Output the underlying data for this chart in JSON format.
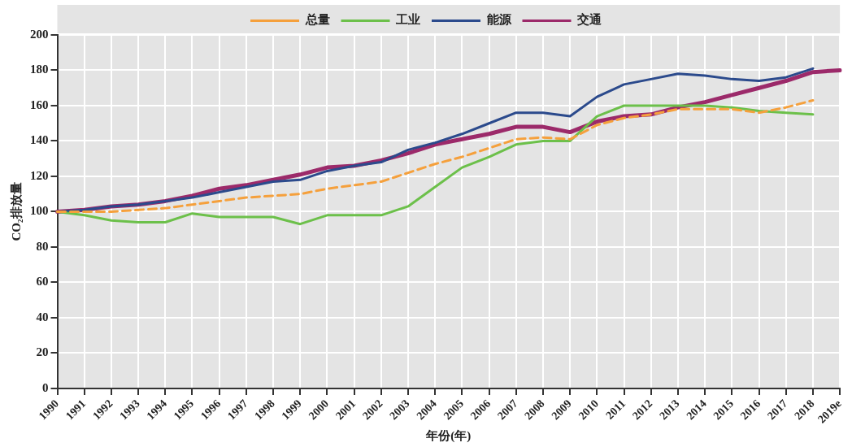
{
  "chart_data": {
    "type": "line",
    "xlabel": "年份(年)",
    "ylabel": "CO₂排放量",
    "categories": [
      "1990",
      "1991",
      "1992",
      "1993",
      "1994",
      "1995",
      "1996",
      "1997",
      "1998",
      "1999",
      "2000",
      "2001",
      "2002",
      "2003",
      "2004",
      "2005",
      "2006",
      "2007",
      "2008",
      "2009",
      "2010",
      "2011",
      "2012",
      "2013",
      "2014",
      "2015",
      "2016",
      "2017",
      "2018",
      "2019e"
    ],
    "series": [
      {
        "name": "总量",
        "color": "#f5a03c",
        "line_style": "dashed",
        "values": [
          100,
          100,
          100,
          101,
          102,
          104,
          106,
          108,
          109,
          110,
          113,
          115,
          117,
          122,
          127,
          131,
          136,
          141,
          142,
          141,
          149,
          153,
          155,
          158,
          158,
          158,
          156,
          159,
          163,
          null
        ]
      },
      {
        "name": "工业",
        "color": "#6cc04a",
        "values": [
          100,
          98,
          95,
          94,
          94,
          99,
          97,
          97,
          97,
          93,
          98,
          98,
          98,
          103,
          114,
          125,
          131,
          138,
          140,
          140,
          154,
          160,
          160,
          160,
          160,
          159,
          157,
          156,
          155,
          null
        ]
      },
      {
        "name": "能源",
        "color": "#2b4a8c",
        "values": [
          100,
          101,
          103,
          104,
          106,
          108,
          111,
          114,
          117,
          118,
          123,
          126,
          128,
          135,
          139,
          144,
          150,
          156,
          156,
          154,
          165,
          172,
          175,
          178,
          177,
          175,
          174,
          176,
          181,
          null
        ]
      },
      {
        "name": "交通",
        "color": "#9c2a6a",
        "values": [
          100,
          101,
          103,
          104,
          106,
          109,
          113,
          115,
          118,
          121,
          125,
          126,
          129,
          133,
          138,
          141,
          144,
          148,
          148,
          145,
          151,
          154,
          155,
          159,
          162,
          166,
          170,
          174,
          179,
          180
        ]
      }
    ],
    "ylim": [
      0,
      200
    ],
    "yticks": [
      0,
      20,
      40,
      60,
      80,
      100,
      120,
      140,
      160,
      180,
      200
    ],
    "grid": true,
    "legend": "top",
    "marker": "none"
  }
}
